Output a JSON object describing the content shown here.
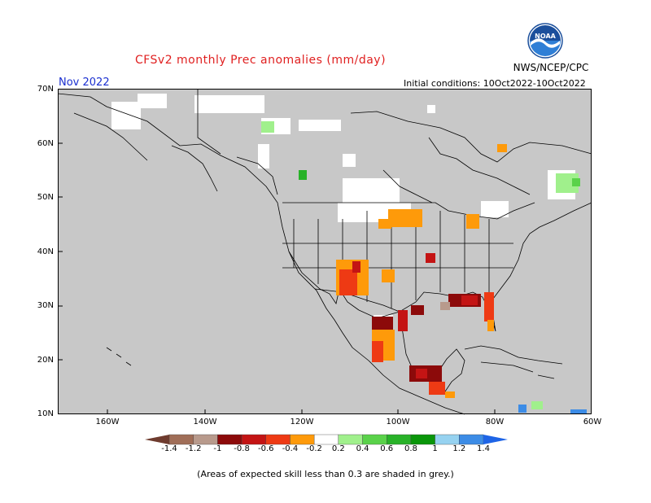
{
  "title": "CFSv2 monthly Prec anomalies (mm/day)",
  "agency": "NWS/NCEP/CPC",
  "logo_text": "NOAA",
  "month": "Nov 2022",
  "initial_conditions": "Initial conditions: 10Oct2022-10Oct2022",
  "footnote": "(Areas of expected skill less than 0.3 are shaded in grey.)",
  "map": {
    "lat_labels": [
      "70N",
      "60N",
      "50N",
      "40N",
      "30N",
      "20N",
      "10N"
    ],
    "lon_labels": [
      "160W",
      "140W",
      "120W",
      "100W",
      "80W",
      "60W"
    ],
    "land_color": "#c8c8c8",
    "ocean_color": "#c8c8c8",
    "no_signal_color": "#ffffff",
    "line_color": "#000000"
  },
  "colorbar": {
    "labels": [
      "-1.4",
      "-1.2",
      "-1",
      "-0.8",
      "-0.6",
      "-0.4",
      "-0.2",
      "0.2",
      "0.4",
      "0.6",
      "0.8",
      "1",
      "1.2",
      "1.4"
    ],
    "colors": [
      "#6e3b2e",
      "#a06e58",
      "#b89a8c",
      "#8c0a0a",
      "#c41414",
      "#ee3a14",
      "#fe9a0a",
      "#ffffff",
      "#a0f08c",
      "#5ad24a",
      "#28b228",
      "#0a960a",
      "#96d2f0",
      "#3c8ce6",
      "#1e64e6"
    ]
  }
}
